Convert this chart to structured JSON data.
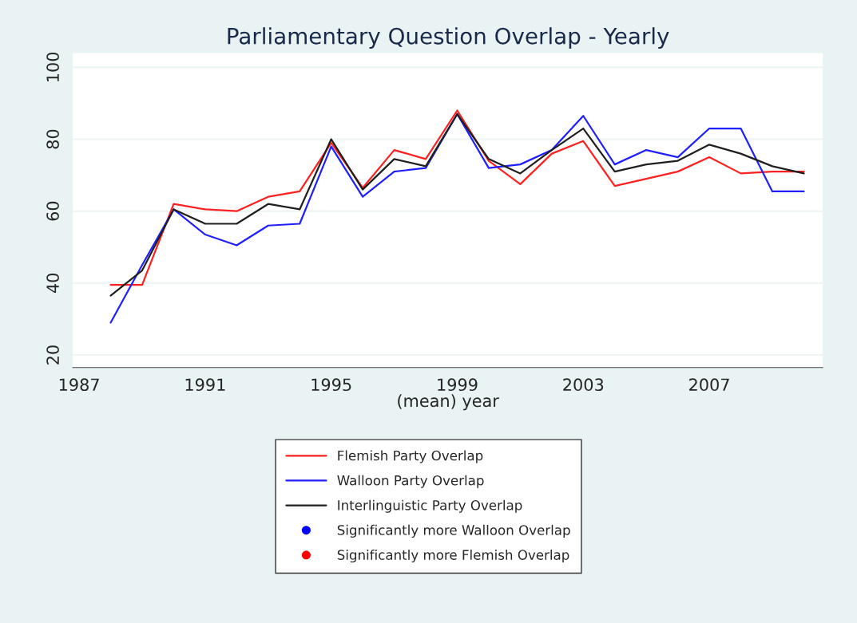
{
  "chart_data": {
    "type": "line",
    "title": "Parliamentary Question Overlap - Yearly",
    "xlabel": "(mean) year",
    "x": [
      1988,
      1989,
      1990,
      1991,
      1992,
      1993,
      1994,
      1995,
      1996,
      1997,
      1998,
      1999,
      2000,
      2001,
      2002,
      2003,
      2004,
      2005,
      2006,
      2007,
      2008,
      2009,
      2010
    ],
    "series": [
      {
        "name": "Flemish Party Overlap",
        "color": "#ff2020",
        "values": [
          39.5,
          39.5,
          62,
          60.5,
          60,
          64,
          65.5,
          79,
          66.5,
          77,
          74.5,
          88,
          74,
          67.5,
          76,
          79.5,
          67,
          69,
          71,
          75,
          70.5,
          71,
          71
        ]
      },
      {
        "name": "Walloon Party Overlap",
        "color": "#2020ff",
        "values": [
          29,
          45,
          60.5,
          53.5,
          50.5,
          56,
          56.5,
          78,
          64,
          71,
          72,
          87,
          72,
          73,
          77,
          86.5,
          73,
          77,
          75,
          83,
          83,
          65.5,
          65.5
        ]
      },
      {
        "name": "Interlinguistic Party Overlap",
        "color": "#202020",
        "values": [
          36.5,
          43.5,
          60.5,
          56.5,
          56.5,
          62,
          60.5,
          80,
          66,
          74.5,
          72.5,
          87,
          74.5,
          70.5,
          77,
          83,
          71,
          73,
          74,
          78.5,
          76,
          72.5,
          70.5
        ]
      },
      {
        "name": "Significantly more Walloon Overlap",
        "type": "scatter",
        "marker": "circle",
        "color": "#0000ff",
        "values": [
          null,
          null,
          null,
          null,
          null,
          null,
          null,
          null,
          null,
          null,
          null,
          null,
          null,
          null,
          null,
          null,
          null,
          null,
          null,
          null,
          null,
          null,
          null
        ]
      },
      {
        "name": "Significantly more Flemish Overlap",
        "type": "scatter",
        "marker": "circle",
        "color": "#ff0000",
        "values": [
          null,
          null,
          null,
          null,
          null,
          null,
          null,
          null,
          null,
          null,
          null,
          null,
          null,
          null,
          null,
          null,
          null,
          null,
          null,
          null,
          null,
          null,
          null
        ]
      }
    ],
    "xlim": [
      1986.8,
      2010.6
    ],
    "xticks": [
      1987,
      1991,
      1995,
      1999,
      2003,
      2007
    ],
    "ylim": [
      16.5,
      104
    ],
    "yticks": [
      20,
      40,
      60,
      80,
      100
    ],
    "grid": "y",
    "legend": "bottom"
  }
}
